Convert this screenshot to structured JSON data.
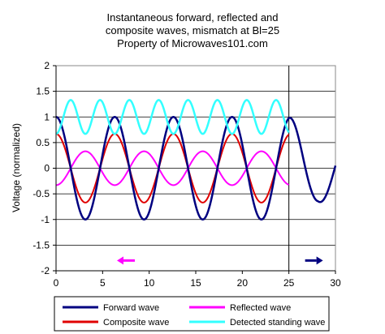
{
  "chart_data": {
    "type": "line",
    "title": [
      "Instantaneous forward, reflected and",
      "composite waves, mismatch at Bl=25",
      "Property of Microwaves101.com"
    ],
    "xlabel": "",
    "ylabel": "Voltage (normalized)",
    "xlim": [
      0,
      30
    ],
    "ylim": [
      -2,
      2
    ],
    "x_ticks": [
      "0",
      "5",
      "10",
      "15",
      "20",
      "25",
      "30"
    ],
    "y_ticks": [
      "2",
      "1.5",
      "1",
      "0.5",
      "0",
      "-0.5",
      "-1",
      "-1.5",
      "-2"
    ],
    "grid": "horizontal",
    "mismatch_position": 25,
    "series": [
      {
        "name": "Forward wave",
        "color": "#000080",
        "amplitude": 1,
        "period": 6.3,
        "beyond_mismatch": {
          "amplitude_to": 0.66,
          "note": "continues past 25"
        }
      },
      {
        "name": "Reflected wave",
        "color": "#ff00ff",
        "amplitude": 0.33,
        "period": 6.3
      },
      {
        "name": "Composite wave",
        "color": "#e00000",
        "amplitude": 0.67,
        "period": 6.3
      },
      {
        "name": "Detected standing wave",
        "color": "#33ffff",
        "min": 0.67,
        "max": 1.33,
        "period": 3.15
      }
    ],
    "arrows": [
      {
        "direction": "left",
        "x": 7.5,
        "y": -1.8,
        "color": "#ff00ff"
      },
      {
        "direction": "right",
        "x": 27.7,
        "y": -1.8,
        "color": "#000080"
      }
    ],
    "legend": {
      "placement": "bottom",
      "entries": [
        {
          "label": "Forward wave",
          "color": "#000080"
        },
        {
          "label": "Reflected wave",
          "color": "#ff00ff"
        },
        {
          "label": "Composite wave",
          "color": "#e00000"
        },
        {
          "label": "Detected standing wave",
          "color": "#33ffff"
        }
      ]
    }
  }
}
